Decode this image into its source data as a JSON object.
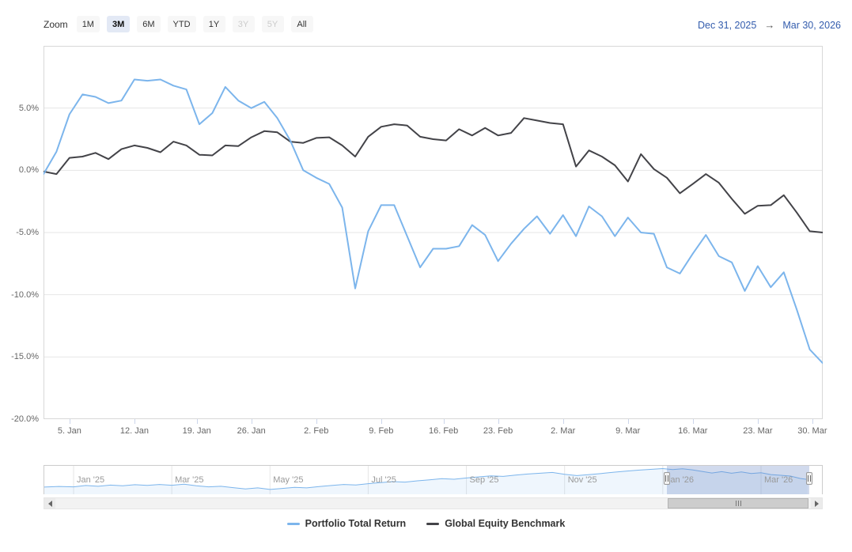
{
  "range_selector": {
    "zoom_label": "Zoom",
    "buttons": [
      {
        "label": "1M",
        "state": "normal"
      },
      {
        "label": "3M",
        "state": "selected"
      },
      {
        "label": "6M",
        "state": "normal"
      },
      {
        "label": "YTD",
        "state": "normal"
      },
      {
        "label": "1Y",
        "state": "normal"
      },
      {
        "label": "3Y",
        "state": "disabled"
      },
      {
        "label": "5Y",
        "state": "disabled"
      },
      {
        "label": "All",
        "state": "normal"
      }
    ],
    "from_date": "Dec 31, 2025",
    "arrow": "→",
    "to_date": "Mar 30, 2026"
  },
  "chart_data": {
    "type": "line",
    "grid": "horizontal",
    "ylim": [
      -20,
      10
    ],
    "y_ticks": [
      {
        "label": "5.0%",
        "value": 5
      },
      {
        "label": "0.0%",
        "value": 0
      },
      {
        "label": "-5.0%",
        "value": -5
      },
      {
        "label": "-10.0%",
        "value": -10
      },
      {
        "label": "-15.0%",
        "value": -15
      },
      {
        "label": "-20.0%",
        "value": -20
      }
    ],
    "x_ticks": [
      {
        "label": "5. Jan",
        "idx": 2
      },
      {
        "label": "12. Jan",
        "idx": 7
      },
      {
        "label": "19. Jan",
        "idx": 11.8
      },
      {
        "label": "26. Jan",
        "idx": 16
      },
      {
        "label": "2. Feb",
        "idx": 21
      },
      {
        "label": "9. Feb",
        "idx": 26
      },
      {
        "label": "16. Feb",
        "idx": 30.8
      },
      {
        "label": "23. Feb",
        "idx": 35
      },
      {
        "label": "2. Mar",
        "idx": 40
      },
      {
        "label": "9. Mar",
        "idx": 45
      },
      {
        "label": "16. Mar",
        "idx": 50
      },
      {
        "label": "23. Mar",
        "idx": 55
      },
      {
        "label": "30. Mar",
        "idx": 59.2
      }
    ],
    "x": [
      "31 Dec",
      "2 Jan",
      "5 Jan",
      "6 Jan",
      "7 Jan",
      "8 Jan",
      "9 Jan",
      "12 Jan",
      "13 Jan",
      "14 Jan",
      "15 Jan",
      "16 Jan",
      "20 Jan",
      "21 Jan",
      "22 Jan",
      "23 Jan",
      "26 Jan",
      "27 Jan",
      "28 Jan",
      "29 Jan",
      "30 Jan",
      "2 Feb",
      "3 Feb",
      "4 Feb",
      "5 Feb",
      "6 Feb",
      "9 Feb",
      "10 Feb",
      "11 Feb",
      "12 Feb",
      "13 Feb",
      "17 Feb",
      "18 Feb",
      "19 Feb",
      "20 Feb",
      "23 Feb",
      "24 Feb",
      "25 Feb",
      "26 Feb",
      "27 Feb",
      "2 Mar",
      "3 Mar",
      "4 Mar",
      "5 Mar",
      "6 Mar",
      "9 Mar",
      "10 Mar",
      "11 Mar",
      "12 Mar",
      "13 Mar",
      "16 Mar",
      "17 Mar",
      "18 Mar",
      "19 Mar",
      "20 Mar",
      "23 Mar",
      "24 Mar",
      "25 Mar",
      "26 Mar",
      "27 Mar",
      "30 Mar"
    ],
    "series": [
      {
        "name": "Portfolio Total Return",
        "color": "#7cb5ec",
        "values": [
          -0.3,
          1.5,
          4.5,
          6.1,
          5.9,
          5.4,
          5.6,
          7.3,
          7.2,
          7.3,
          6.8,
          6.5,
          3.7,
          4.6,
          6.7,
          5.6,
          5.0,
          5.5,
          4.2,
          2.4,
          0.0,
          -0.6,
          -1.1,
          -3.0,
          -9.5,
          -4.9,
          -2.8,
          -2.8,
          -5.3,
          -7.8,
          -6.3,
          -6.3,
          -6.1,
          -4.4,
          -5.2,
          -7.3,
          -5.9,
          -4.7,
          -3.7,
          -5.1,
          -3.6,
          -5.3,
          -2.9,
          -3.7,
          -5.3,
          -3.8,
          -5.0,
          -5.1,
          -7.8,
          -8.3,
          -6.7,
          -5.2,
          -6.9,
          -7.4,
          -9.7,
          -7.7,
          -9.4,
          -8.2,
          -11.2,
          -14.4,
          -15.5
        ]
      },
      {
        "name": "Global Equity Benchmark",
        "color": "#434348",
        "values": [
          -0.1,
          -0.3,
          1.0,
          1.1,
          1.4,
          0.9,
          1.7,
          2.0,
          1.8,
          1.45,
          2.3,
          2.0,
          1.25,
          1.2,
          2.0,
          1.95,
          2.65,
          3.15,
          3.05,
          2.3,
          2.2,
          2.6,
          2.65,
          2.0,
          1.1,
          2.7,
          3.5,
          3.7,
          3.6,
          2.7,
          2.5,
          2.4,
          3.3,
          2.8,
          3.4,
          2.8,
          3.0,
          4.2,
          4.0,
          3.8,
          3.7,
          0.3,
          1.6,
          1.1,
          0.4,
          -0.9,
          1.3,
          0.1,
          -0.6,
          -1.85,
          -1.1,
          -0.3,
          -1.0,
          -2.3,
          -3.5,
          -2.85,
          -2.8,
          -2.0,
          -3.4,
          -4.9,
          -5.0
        ]
      }
    ],
    "navigator": {
      "labels": [
        {
          "label": "Jan '25",
          "month": 0
        },
        {
          "label": "Mar '25",
          "month": 2
        },
        {
          "label": "May '25",
          "month": 4
        },
        {
          "label": "Jul '25",
          "month": 6
        },
        {
          "label": "Sep '25",
          "month": 8
        },
        {
          "label": "Nov '25",
          "month": 10
        },
        {
          "label": "Jan '26",
          "month": 12
        },
        {
          "label": "Mar '26",
          "month": 14
        }
      ],
      "x_months": [
        -0.6,
        -0.3,
        0,
        0.25,
        0.5,
        0.75,
        1.0,
        1.25,
        1.5,
        1.75,
        2.0,
        2.25,
        2.5,
        2.75,
        3.0,
        3.25,
        3.5,
        3.75,
        4.0,
        4.25,
        4.5,
        4.75,
        5.0,
        5.25,
        5.5,
        5.75,
        6.0,
        6.25,
        6.5,
        6.75,
        7.0,
        7.25,
        7.5,
        7.75,
        8.0,
        8.25,
        8.5,
        8.75,
        9.0,
        9.25,
        9.5,
        9.75,
        10.0,
        10.25,
        10.5,
        10.75,
        11.0,
        11.25,
        11.5,
        11.75,
        12.0,
        12.2,
        12.4,
        12.6,
        12.8,
        13.0,
        13.2,
        13.4,
        13.6,
        13.8,
        14.0,
        14.2,
        14.4,
        14.6,
        14.8,
        14.95
      ],
      "values": [
        3.0,
        3.5,
        3.2,
        4.2,
        3.6,
        4.5,
        4.0,
        4.8,
        4.3,
        5.0,
        4.4,
        5.2,
        4.0,
        3.2,
        3.6,
        2.6,
        1.6,
        2.4,
        1.2,
        2.0,
        2.8,
        2.4,
        3.4,
        4.2,
        5.0,
        4.6,
        5.6,
        6.4,
        7.2,
        6.8,
        7.8,
        8.6,
        9.4,
        9.0,
        10.0,
        10.8,
        11.6,
        11.2,
        12.2,
        13.0,
        13.6,
        14.2,
        12.8,
        11.8,
        12.6,
        13.4,
        14.4,
        15.2,
        16.0,
        16.6,
        17.2,
        16.4,
        17.0,
        16.2,
        15.0,
        13.8,
        14.8,
        13.6,
        14.6,
        13.4,
        14.0,
        12.6,
        12.0,
        11.4,
        9.6,
        8.8
      ],
      "selection": {
        "from": "Dec 31, 2025",
        "to": "Mar 30, 2026"
      }
    }
  },
  "legend": {
    "items": [
      {
        "label": "Portfolio Total Return",
        "color": "#7cb5ec"
      },
      {
        "label": "Global Equity Benchmark",
        "color": "#434348"
      }
    ]
  },
  "colors": {
    "portfolio": "#7cb5ec",
    "benchmark": "#434348",
    "gridline": "#e6e6e6",
    "plot_border": "#d8d8d8",
    "axis_label": "#666666",
    "date_link": "#335cad",
    "selected_button_bg": "#e3e9f5",
    "navigator_mask": "rgba(102,133,194,0.3)"
  }
}
